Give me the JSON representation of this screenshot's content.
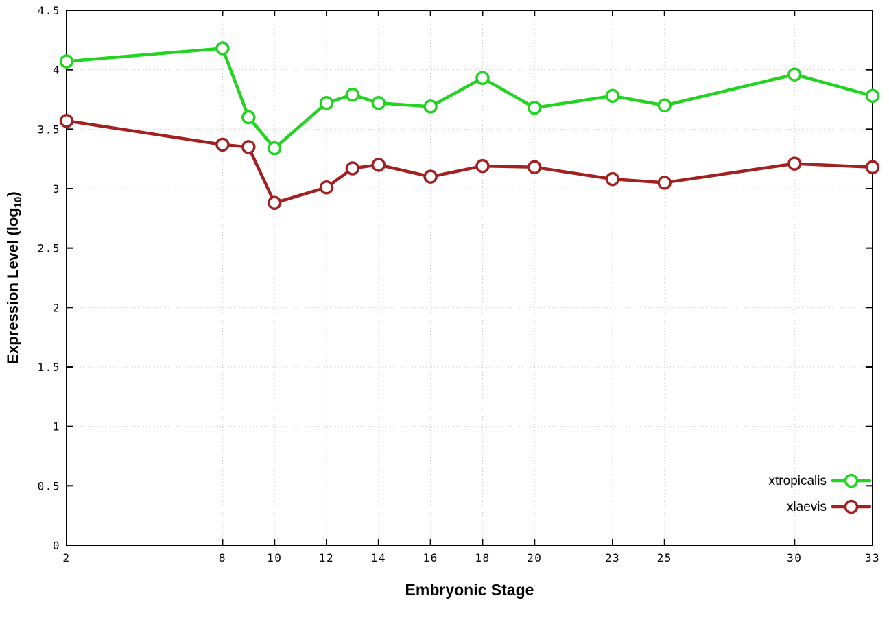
{
  "chart_data": {
    "type": "line",
    "title": "",
    "xlabel": "Embryonic Stage",
    "ylabel": "Expression Level (log10)",
    "ylabel_parts": {
      "main": "Expression Level (log",
      "sub": "10",
      "end": ")"
    },
    "x": [
      2,
      8,
      9,
      10,
      12,
      13,
      14,
      16,
      18,
      20,
      23,
      25,
      30,
      33
    ],
    "xticks": [
      2,
      8,
      10,
      12,
      14,
      16,
      18,
      20,
      23,
      25,
      30,
      33
    ],
    "yticks": [
      0,
      0.5,
      1,
      1.5,
      2,
      2.5,
      3,
      3.5,
      4,
      4.5
    ],
    "xlim": [
      2,
      33
    ],
    "ylim": [
      0,
      4.5
    ],
    "grid": true,
    "legend_position": "bottom-right",
    "series": [
      {
        "name": "xtropicalis",
        "color": "#20d420",
        "values": [
          4.07,
          4.18,
          3.6,
          3.34,
          3.72,
          3.79,
          3.72,
          3.69,
          3.93,
          3.68,
          3.78,
          3.7,
          3.96,
          3.78
        ]
      },
      {
        "name": "xlaevis",
        "color": "#a22020",
        "values": [
          3.57,
          3.37,
          3.35,
          2.88,
          3.01,
          3.17,
          3.2,
          3.1,
          3.19,
          3.18,
          3.08,
          3.05,
          3.21,
          3.18
        ]
      }
    ],
    "style": {
      "grid_color": "#c9c9c9",
      "axis_color": "#000000",
      "background": "#ffffff",
      "line_width": 4.5,
      "marker_radius": 8.5,
      "marker_stroke": 3.5
    }
  }
}
